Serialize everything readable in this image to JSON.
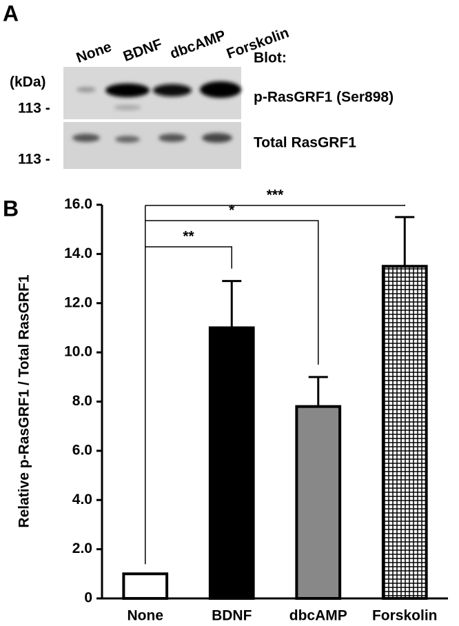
{
  "panel_a": {
    "panel_label": "A",
    "lanes": [
      "None",
      "BDNF",
      "dbcAMP",
      "Forskolin"
    ],
    "blot_heading": "Blot:",
    "unit": "(kDa)",
    "markers": [
      "113 -",
      "113 -"
    ],
    "blots": [
      "p-RasGRF1 (Ser898)",
      "Total RasGRF1"
    ]
  },
  "chart_data": {
    "type": "bar",
    "panel_label": "B",
    "y_label": "Relative p-RasGRF1 / Total RasGRF1",
    "categories": [
      "None",
      "BDNF",
      "dbcAMP",
      "Forskolin"
    ],
    "values": [
      1.0,
      11.0,
      7.8,
      13.5
    ],
    "errors": [
      null,
      1.9,
      1.2,
      2.0
    ],
    "colors": [
      "#ffffff",
      "#000000",
      "#888888",
      "#ffffff"
    ],
    "checkered": [
      false,
      false,
      false,
      true
    ],
    "ylim": [
      0,
      16
    ],
    "yticks": [
      0,
      {
        "value": 2,
        "label": "2.0"
      },
      {
        "value": 4,
        "label": "4.0"
      },
      {
        "value": 6,
        "label": "6.0"
      },
      {
        "value": 8,
        "label": "8.0"
      },
      {
        "value": 10,
        "label": "10.0"
      },
      {
        "value": 12,
        "label": "12.0"
      },
      {
        "value": 14,
        "label": "14.0"
      },
      {
        "value": 16,
        "label": "16.0"
      }
    ],
    "significance": [
      "**",
      "*",
      "***"
    ]
  }
}
